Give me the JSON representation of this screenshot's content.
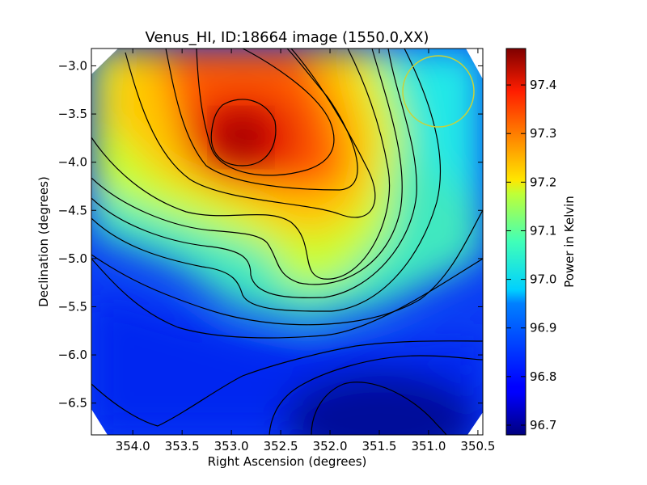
{
  "chart_data": {
    "type": "heatmap",
    "title": "Venus_HI, ID:18664 image (1550.0,XX)",
    "xlabel": "Right Ascension (degrees)",
    "ylabel": "Declination (degrees)",
    "colorbar_label": "Power in Kelvin",
    "xlim": [
      354.42,
      350.45
    ],
    "ylim": [
      -6.83,
      -2.82
    ],
    "x_ticks": [
      354.0,
      353.5,
      353.0,
      352.5,
      352.0,
      351.5,
      351.0,
      350.5
    ],
    "x_tick_labels": [
      "354.0",
      "353.5",
      "353.0",
      "352.5",
      "352.0",
      "351.5",
      "351.0",
      "350.5"
    ],
    "y_ticks": [
      -3.0,
      -3.5,
      -4.0,
      -4.5,
      -5.0,
      -5.5,
      -6.0,
      -6.5
    ],
    "y_tick_labels": [
      "−3.0",
      "−3.5",
      "−4.0",
      "−4.5",
      "−5.0",
      "−5.5",
      "−6.0",
      "−6.5"
    ],
    "colorbar_range": [
      96.68,
      97.475
    ],
    "colorbar_ticks": [
      96.7,
      96.8,
      96.9,
      97.0,
      97.1,
      97.2,
      97.3,
      97.4
    ],
    "colorbar_tick_labels": [
      "96.7",
      "96.8",
      "96.9",
      "97.0",
      "97.1",
      "97.2",
      "97.3",
      "97.4"
    ],
    "colormap": "jet",
    "features": {
      "peak": {
        "ra": 352.9,
        "dec": -3.8,
        "power": 97.47
      },
      "minimum": {
        "ra": 351.8,
        "dec": -6.7,
        "power": 96.68
      },
      "beam_circle": {
        "ra": 350.88,
        "dec": -3.27,
        "radius_deg": 0.36,
        "color": "#c8d23a"
      }
    },
    "grid": false,
    "contour_color": "#000000"
  }
}
